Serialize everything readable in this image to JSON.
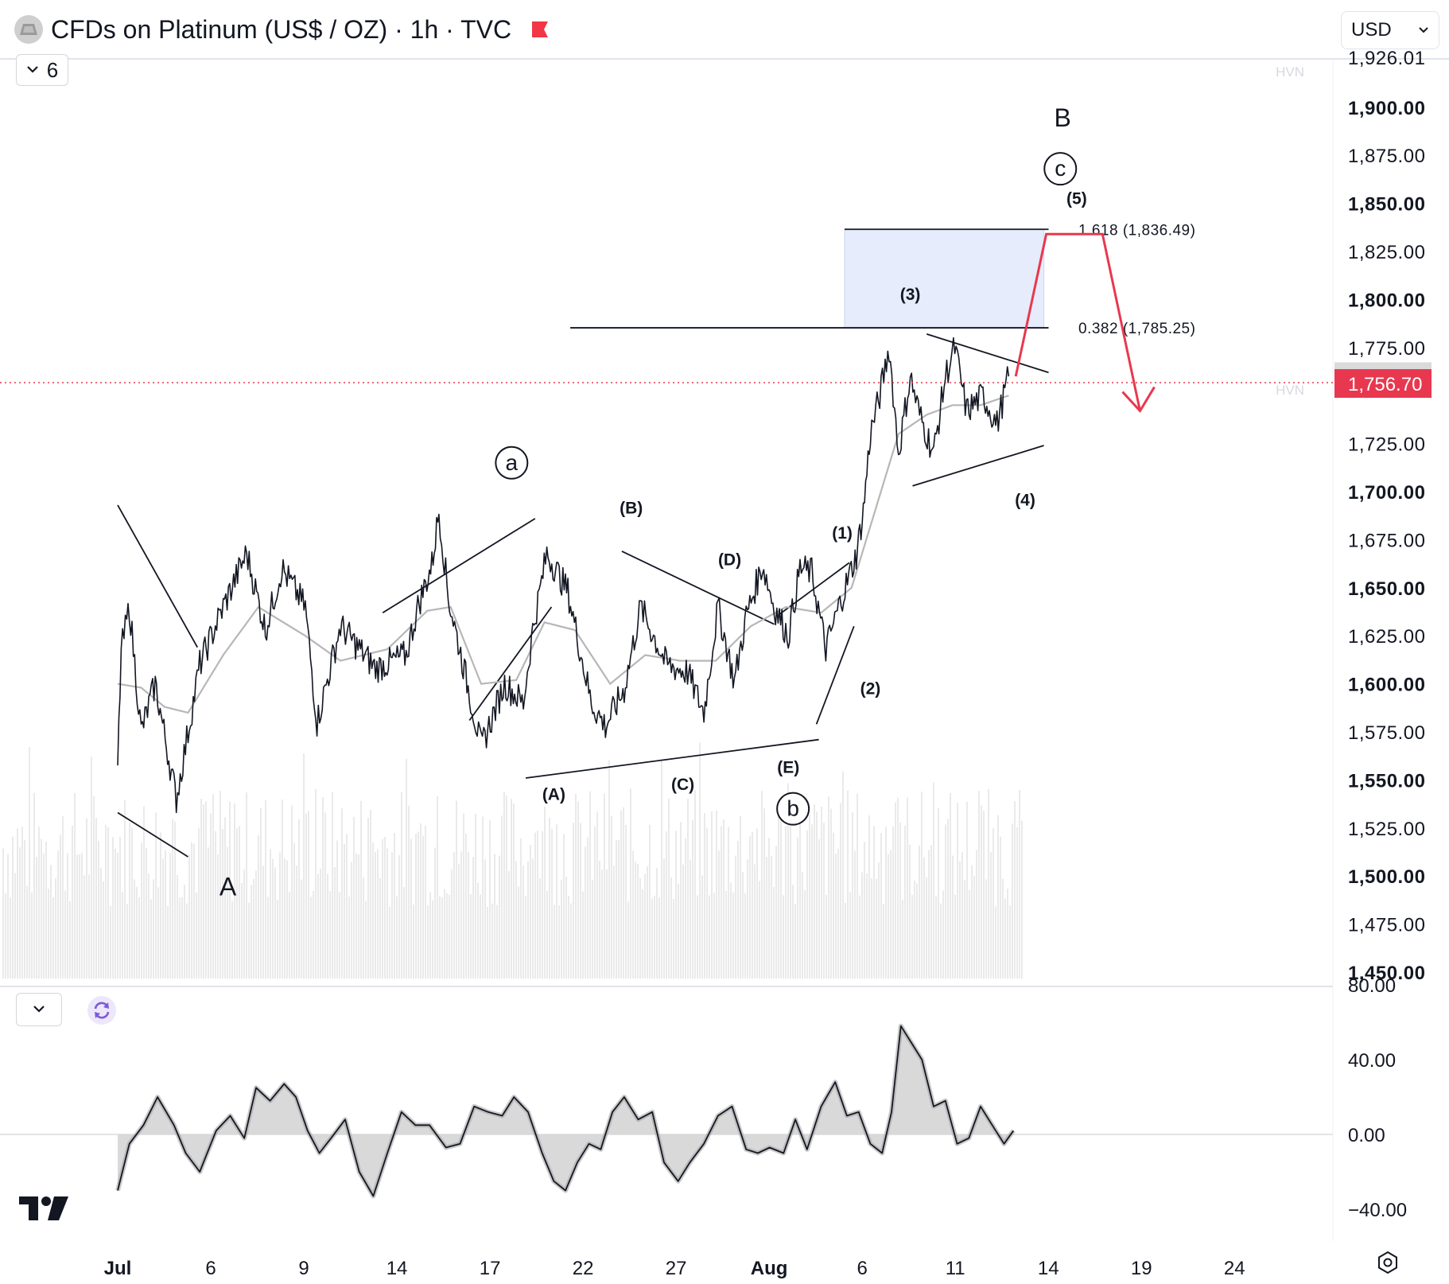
{
  "header": {
    "title": "CFDs on Platinum (US$ / OZ) · 1h · TVC",
    "currency": "USD"
  },
  "indicator_toggle": {
    "count": "6"
  },
  "colors": {
    "price": "#131722",
    "ma": "#b7b7b7",
    "accent_red": "#e8384f",
    "zone_fill": "#e6ecfc",
    "grid": "#f0f3fa",
    "axis_text": "#131722"
  },
  "chart_data": [
    {
      "type": "line",
      "subtype": "candlestick-style price (1h)",
      "symbol": "CFDs on Platinum (US$ / OZ)",
      "ylim": [
        1440,
        1930
      ],
      "x_labels": [
        "Jul",
        "6",
        "9",
        "14",
        "17",
        "22",
        "27",
        "Aug",
        "6",
        "11",
        "14",
        "19",
        "24"
      ],
      "y_ticks": [
        {
          "label": "1,926.01",
          "value": 1926.01
        },
        {
          "label": "1,900.00",
          "value": 1900,
          "bold": true
        },
        {
          "label": "1,875.00",
          "value": 1875
        },
        {
          "label": "1,850.00",
          "value": 1850,
          "bold": true
        },
        {
          "label": "1,825.00",
          "value": 1825
        },
        {
          "label": "1,800.00",
          "value": 1800,
          "bold": true
        },
        {
          "label": "1,775.00",
          "value": 1775
        },
        {
          "label": "1,750.00",
          "value": 1750
        },
        {
          "label": "1,725.00",
          "value": 1725
        },
        {
          "label": "1,700.00",
          "value": 1700,
          "bold": true
        },
        {
          "label": "1,675.00",
          "value": 1675
        },
        {
          "label": "1,650.00",
          "value": 1650,
          "bold": true
        },
        {
          "label": "1,625.00",
          "value": 1625
        },
        {
          "label": "1,600.00",
          "value": 1600,
          "bold": true
        },
        {
          "label": "1,575.00",
          "value": 1575
        },
        {
          "label": "1,550.00",
          "value": 1550,
          "bold": true
        },
        {
          "label": "1,525.00",
          "value": 1525
        },
        {
          "label": "1,500.00",
          "value": 1500,
          "bold": true
        },
        {
          "label": "1,475.00",
          "value": 1475
        },
        {
          "label": "1,450.00",
          "value": 1450,
          "bold": true
        }
      ],
      "price_key_points": [
        {
          "x": 0,
          "y": 1557
        },
        {
          "x": 0.15,
          "y": 1617
        },
        {
          "x": 0.5,
          "y": 1640
        },
        {
          "x": 1,
          "y": 1575
        },
        {
          "x": 1.6,
          "y": 1600
        },
        {
          "x": 2.5,
          "y": 1540
        },
        {
          "x": 3,
          "y": 1575
        },
        {
          "x": 3.5,
          "y": 1610
        },
        {
          "x": 4.5,
          "y": 1640
        },
        {
          "x": 5.5,
          "y": 1668
        },
        {
          "x": 6.3,
          "y": 1628
        },
        {
          "x": 7,
          "y": 1660
        },
        {
          "x": 8,
          "y": 1640
        },
        {
          "x": 8.5,
          "y": 1580
        },
        {
          "x": 9.5,
          "y": 1630
        },
        {
          "x": 11,
          "y": 1608
        },
        {
          "x": 12.3,
          "y": 1615
        },
        {
          "x": 12.8,
          "y": 1640
        },
        {
          "x": 13.4,
          "y": 1662
        },
        {
          "x": 13.7,
          "y": 1690
        },
        {
          "x": 14.1,
          "y": 1645
        },
        {
          "x": 15,
          "y": 1595
        },
        {
          "x": 15.5,
          "y": 1567
        },
        {
          "x": 16.5,
          "y": 1600
        },
        {
          "x": 17.3,
          "y": 1590
        },
        {
          "x": 17.7,
          "y": 1628
        },
        {
          "x": 18.3,
          "y": 1668
        },
        {
          "x": 19.2,
          "y": 1648
        },
        {
          "x": 20.2,
          "y": 1590
        },
        {
          "x": 20.8,
          "y": 1578
        },
        {
          "x": 21.6,
          "y": 1597
        },
        {
          "x": 22.3,
          "y": 1640
        },
        {
          "x": 23.4,
          "y": 1610
        },
        {
          "x": 24.3,
          "y": 1606
        },
        {
          "x": 25,
          "y": 1585
        },
        {
          "x": 25.6,
          "y": 1640
        },
        {
          "x": 26.3,
          "y": 1601
        },
        {
          "x": 26.8,
          "y": 1635
        },
        {
          "x": 27.5,
          "y": 1662
        },
        {
          "x": 28,
          "y": 1640
        },
        {
          "x": 28.6,
          "y": 1625
        },
        {
          "x": 29.1,
          "y": 1660
        },
        {
          "x": 29.6,
          "y": 1658
        },
        {
          "x": 30.2,
          "y": 1618
        },
        {
          "x": 30.8,
          "y": 1642
        },
        {
          "x": 31.5,
          "y": 1667
        },
        {
          "x": 31.8,
          "y": 1690
        },
        {
          "x": 32.1,
          "y": 1730
        },
        {
          "x": 32.5,
          "y": 1750
        },
        {
          "x": 32.9,
          "y": 1775
        },
        {
          "x": 33.3,
          "y": 1720
        },
        {
          "x": 33.8,
          "y": 1760
        },
        {
          "x": 34.2,
          "y": 1740
        },
        {
          "x": 34.8,
          "y": 1720
        },
        {
          "x": 35.3,
          "y": 1760
        },
        {
          "x": 35.7,
          "y": 1775
        },
        {
          "x": 36.2,
          "y": 1742
        },
        {
          "x": 36.9,
          "y": 1750
        },
        {
          "x": 37.5,
          "y": 1735
        },
        {
          "x": 38,
          "y": 1760
        }
      ],
      "moving_average": [
        {
          "x": 0,
          "y": 1600
        },
        {
          "x": 1,
          "y": 1598
        },
        {
          "x": 2,
          "y": 1588
        },
        {
          "x": 3,
          "y": 1585
        },
        {
          "x": 4.5,
          "y": 1615
        },
        {
          "x": 6,
          "y": 1640
        },
        {
          "x": 8,
          "y": 1625
        },
        {
          "x": 9.5,
          "y": 1612
        },
        {
          "x": 11.5,
          "y": 1618
        },
        {
          "x": 13.2,
          "y": 1638
        },
        {
          "x": 14.2,
          "y": 1640
        },
        {
          "x": 15.5,
          "y": 1600
        },
        {
          "x": 17,
          "y": 1602
        },
        {
          "x": 18.2,
          "y": 1632
        },
        {
          "x": 19.5,
          "y": 1628
        },
        {
          "x": 21,
          "y": 1600
        },
        {
          "x": 22.5,
          "y": 1615
        },
        {
          "x": 24,
          "y": 1612
        },
        {
          "x": 25.5,
          "y": 1612
        },
        {
          "x": 27,
          "y": 1630
        },
        {
          "x": 28.5,
          "y": 1640
        },
        {
          "x": 30,
          "y": 1637
        },
        {
          "x": 31.3,
          "y": 1650
        },
        {
          "x": 32.3,
          "y": 1690
        },
        {
          "x": 33.3,
          "y": 1730
        },
        {
          "x": 34.5,
          "y": 1740
        },
        {
          "x": 35.6,
          "y": 1745
        },
        {
          "x": 36.8,
          "y": 1745
        },
        {
          "x": 38,
          "y": 1750
        }
      ],
      "current_price": {
        "label": "1,756.70",
        "value": 1756.7
      },
      "prev_close": {
        "label": "1,760.25",
        "value": 1760.25
      },
      "hvn_labels": [
        "HVN",
        "HVN"
      ],
      "fib_levels": [
        {
          "label": "1.618 (1,836.49)",
          "value": 1836.49
        },
        {
          "label": "0.382 (1,785.25)",
          "value": 1785.25
        }
      ],
      "target_zone": {
        "from": 1785.25,
        "to": 1836.49,
        "x_from": 31,
        "x_to": 39.5
      },
      "projection": [
        {
          "x": 38.3,
          "y": 1760
        },
        {
          "x": 39.6,
          "y": 1834
        },
        {
          "x": 42,
          "y": 1834
        },
        {
          "x": 43.6,
          "y": 1742
        }
      ],
      "wave_labels": [
        {
          "label": "A",
          "x": 4.7,
          "y": 1495,
          "style": "large"
        },
        {
          "label": "a",
          "x": 16.8,
          "y": 1715,
          "style": "circle"
        },
        {
          "label": "b",
          "x": 28.8,
          "y": 1535,
          "style": "circle"
        },
        {
          "label": "c",
          "x": 40.2,
          "y": 1868,
          "style": "circle"
        },
        {
          "label": "B",
          "x": 40.3,
          "y": 1895,
          "style": "large"
        },
        {
          "label": "(A)",
          "x": 18.6,
          "y": 1543,
          "style": "paren"
        },
        {
          "label": "(B)",
          "x": 21.9,
          "y": 1692,
          "style": "paren"
        },
        {
          "label": "(C)",
          "x": 24.1,
          "y": 1548,
          "style": "paren"
        },
        {
          "label": "(D)",
          "x": 26.1,
          "y": 1665,
          "style": "paren"
        },
        {
          "label": "(E)",
          "x": 28.6,
          "y": 1557,
          "style": "paren"
        },
        {
          "label": "(1)",
          "x": 30.9,
          "y": 1679,
          "style": "paren"
        },
        {
          "label": "(2)",
          "x": 32.1,
          "y": 1598,
          "style": "paren"
        },
        {
          "label": "(3)",
          "x": 33.8,
          "y": 1803,
          "style": "paren"
        },
        {
          "label": "(4)",
          "x": 38.7,
          "y": 1696,
          "style": "paren"
        },
        {
          "label": "(5)",
          "x": 40.9,
          "y": 1853,
          "style": "paren"
        }
      ],
      "trend_lines": [
        [
          {
            "x": 0,
            "y": 1693
          },
          {
            "x": 3.4,
            "y": 1619
          }
        ],
        [
          {
            "x": 0,
            "y": 1533
          },
          {
            "x": 3,
            "y": 1510
          }
        ],
        [
          {
            "x": 11.3,
            "y": 1637
          },
          {
            "x": 17.8,
            "y": 1686
          }
        ],
        [
          {
            "x": 15,
            "y": 1581
          },
          {
            "x": 18.5,
            "y": 1640
          }
        ],
        [
          {
            "x": 17.4,
            "y": 1551
          },
          {
            "x": 29.9,
            "y": 1571
          }
        ],
        [
          {
            "x": 21.5,
            "y": 1669
          },
          {
            "x": 28,
            "y": 1631
          }
        ],
        [
          {
            "x": 28.2,
            "y": 1636
          },
          {
            "x": 31.2,
            "y": 1663
          }
        ],
        [
          {
            "x": 29.8,
            "y": 1579
          },
          {
            "x": 31.4,
            "y": 1630
          }
        ],
        [
          {
            "x": 19.3,
            "y": 1785.25
          },
          {
            "x": 39.7,
            "y": 1785.25
          }
        ],
        [
          {
            "x": 31,
            "y": 1836.49
          },
          {
            "x": 39.7,
            "y": 1836.49
          }
        ],
        [
          {
            "x": 34.5,
            "y": 1782
          },
          {
            "x": 39.7,
            "y": 1762
          }
        ],
        [
          {
            "x": 33.9,
            "y": 1703
          },
          {
            "x": 39.5,
            "y": 1724
          }
        ]
      ]
    },
    {
      "type": "area",
      "subtype": "oscillator",
      "ylim": [
        -60,
        80
      ],
      "y_ticks": [
        {
          "label": "80.00",
          "value": 80
        },
        {
          "label": "40.00",
          "value": 40
        },
        {
          "label": "0.00",
          "value": 0
        },
        {
          "label": "−40.00",
          "value": -40
        }
      ],
      "points": [
        {
          "x": 0,
          "y": -30
        },
        {
          "x": 0.5,
          "y": -5
        },
        {
          "x": 1.1,
          "y": 5
        },
        {
          "x": 1.7,
          "y": 20
        },
        {
          "x": 2.4,
          "y": 5
        },
        {
          "x": 2.9,
          "y": -10
        },
        {
          "x": 3.5,
          "y": -20
        },
        {
          "x": 4.2,
          "y": 2
        },
        {
          "x": 4.8,
          "y": 10
        },
        {
          "x": 5.4,
          "y": -2
        },
        {
          "x": 5.9,
          "y": 25
        },
        {
          "x": 6.5,
          "y": 18
        },
        {
          "x": 7.1,
          "y": 27
        },
        {
          "x": 7.6,
          "y": 20
        },
        {
          "x": 8.1,
          "y": 2
        },
        {
          "x": 8.6,
          "y": -10
        },
        {
          "x": 9.1,
          "y": -2
        },
        {
          "x": 9.7,
          "y": 8
        },
        {
          "x": 10.3,
          "y": -20
        },
        {
          "x": 10.9,
          "y": -33
        },
        {
          "x": 11.5,
          "y": -10
        },
        {
          "x": 12.1,
          "y": 12
        },
        {
          "x": 12.7,
          "y": 5
        },
        {
          "x": 13.3,
          "y": 5
        },
        {
          "x": 14,
          "y": -7
        },
        {
          "x": 14.6,
          "y": -5
        },
        {
          "x": 15.2,
          "y": 15
        },
        {
          "x": 15.8,
          "y": 12
        },
        {
          "x": 16.4,
          "y": 10
        },
        {
          "x": 16.9,
          "y": 20
        },
        {
          "x": 17.5,
          "y": 12
        },
        {
          "x": 18.1,
          "y": -10
        },
        {
          "x": 18.6,
          "y": -25
        },
        {
          "x": 19.1,
          "y": -30
        },
        {
          "x": 19.6,
          "y": -15
        },
        {
          "x": 20.1,
          "y": -5
        },
        {
          "x": 20.6,
          "y": -8
        },
        {
          "x": 21.1,
          "y": 12
        },
        {
          "x": 21.6,
          "y": 20
        },
        {
          "x": 22.2,
          "y": 8
        },
        {
          "x": 22.8,
          "y": 12
        },
        {
          "x": 23.3,
          "y": -15
        },
        {
          "x": 23.9,
          "y": -25
        },
        {
          "x": 24.4,
          "y": -15
        },
        {
          "x": 25,
          "y": -5
        },
        {
          "x": 25.6,
          "y": 10
        },
        {
          "x": 26.2,
          "y": 15
        },
        {
          "x": 26.8,
          "y": -8
        },
        {
          "x": 27.3,
          "y": -10
        },
        {
          "x": 27.8,
          "y": -7
        },
        {
          "x": 28.4,
          "y": -10
        },
        {
          "x": 28.9,
          "y": 8
        },
        {
          "x": 29.4,
          "y": -8
        },
        {
          "x": 30,
          "y": 15
        },
        {
          "x": 30.6,
          "y": 28
        },
        {
          "x": 31.1,
          "y": 10
        },
        {
          "x": 31.6,
          "y": 12
        },
        {
          "x": 32.1,
          "y": -5
        },
        {
          "x": 32.6,
          "y": -10
        },
        {
          "x": 33,
          "y": 12
        },
        {
          "x": 33.4,
          "y": 58
        },
        {
          "x": 33.8,
          "y": 50
        },
        {
          "x": 34.3,
          "y": 40
        },
        {
          "x": 34.8,
          "y": 15
        },
        {
          "x": 35.3,
          "y": 18
        },
        {
          "x": 35.8,
          "y": -5
        },
        {
          "x": 36.3,
          "y": -2
        },
        {
          "x": 36.8,
          "y": 15
        },
        {
          "x": 37.3,
          "y": 5
        },
        {
          "x": 37.8,
          "y": -5
        },
        {
          "x": 38.2,
          "y": 2
        }
      ]
    }
  ]
}
